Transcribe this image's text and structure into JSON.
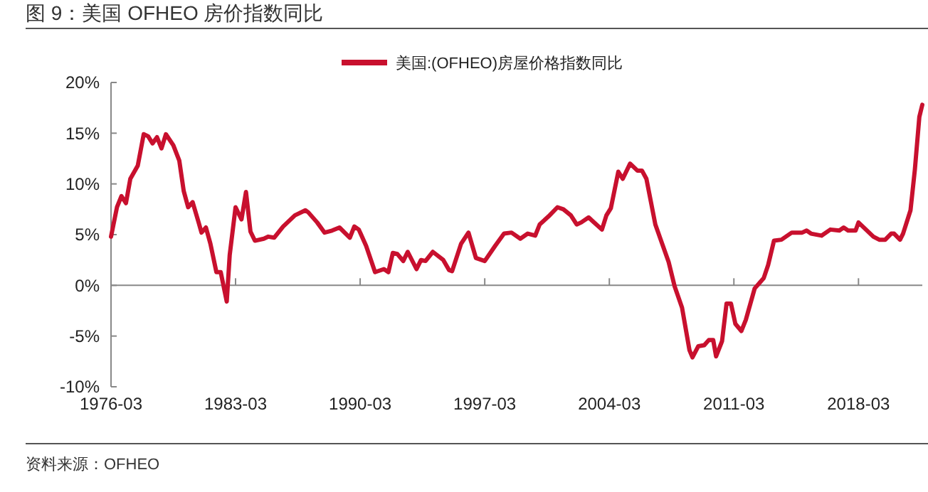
{
  "chart_data": {
    "type": "line",
    "title": "图 9：美国 OFHEO 房价指数同比",
    "legend": "top",
    "marker": "none",
    "line_style": "solid",
    "annotations": [
      "资料来源：OFHEO"
    ],
    "xlim": [
      "1976-03",
      "2021-10"
    ],
    "xticks": [
      "1976-03",
      "1983-03",
      "1990-03",
      "1997-03",
      "2004-03",
      "2011-03",
      "2018-03"
    ],
    "ylim": [
      -10,
      20
    ],
    "yticks": [
      {
        "value": -10,
        "label": "-10%"
      },
      {
        "value": -5,
        "label": "-5%"
      },
      {
        "value": 0,
        "label": "0%"
      },
      {
        "value": 5,
        "label": "5%"
      },
      {
        "value": 10,
        "label": "10%"
      },
      {
        "value": 15,
        "label": "15%"
      },
      {
        "value": 20,
        "label": "20%"
      }
    ],
    "x": [
      "1976-03",
      "1976-07",
      "1976-10",
      "1977-01",
      "1977-04",
      "1977-09",
      "1978-01",
      "1978-04",
      "1978-07",
      "1978-10",
      "1979-01",
      "1979-04",
      "1979-09",
      "1980-01",
      "1980-04",
      "1980-07",
      "1980-10",
      "1981-02",
      "1981-04",
      "1981-07",
      "1981-10",
      "1982-02",
      "1982-05",
      "1982-09",
      "1982-11",
      "1983-03",
      "1983-07",
      "1983-10",
      "1984-01",
      "1984-04",
      "1984-10",
      "1985-01",
      "1985-05",
      "1985-11",
      "1986-07",
      "1987-02",
      "1987-04",
      "1987-10",
      "1988-03",
      "1988-08",
      "1989-01",
      "1989-08",
      "1989-11",
      "1990-02",
      "1990-07",
      "1991-01",
      "1991-07",
      "1991-10",
      "1992-01",
      "1992-04",
      "1992-08",
      "1992-11",
      "1993-05",
      "1993-08",
      "1993-11",
      "1994-04",
      "1994-11",
      "1995-03",
      "1995-05",
      "1995-11",
      "1996-04",
      "1996-09",
      "1997-03",
      "1997-10",
      "1998-04",
      "1998-09",
      "1999-03",
      "1999-08",
      "2000-01",
      "2000-04",
      "2000-10",
      "2001-04",
      "2001-08",
      "2002-01",
      "2002-05",
      "2002-08",
      "2003-01",
      "2003-04",
      "2003-10",
      "2004-01",
      "2004-04",
      "2004-09",
      "2004-12",
      "2005-05",
      "2005-10",
      "2006-01",
      "2006-04",
      "2006-10",
      "2007-07",
      "2007-11",
      "2008-04",
      "2008-09",
      "2008-11",
      "2009-03",
      "2009-07",
      "2009-10",
      "2010-01",
      "2010-03",
      "2010-07",
      "2010-10",
      "2011-01",
      "2011-04",
      "2011-08",
      "2011-11",
      "2012-05",
      "2012-08",
      "2012-11",
      "2013-02",
      "2013-06",
      "2013-11",
      "2014-06",
      "2015-01",
      "2015-04",
      "2015-07",
      "2016-02",
      "2016-08",
      "2017-02",
      "2017-05",
      "2017-08",
      "2018-01",
      "2018-03",
      "2018-08",
      "2019-01",
      "2019-05",
      "2019-09",
      "2020-01",
      "2020-03",
      "2020-07",
      "2020-09",
      "2021-02",
      "2021-05",
      "2021-08",
      "2021-10"
    ],
    "series": [
      {
        "name": "美国:(OFHEO)房屋价格指数同比",
        "color": "#c8102e",
        "values": [
          4.8,
          7.7,
          8.8,
          8.1,
          10.5,
          11.8,
          14.9,
          14.7,
          14.0,
          14.6,
          13.5,
          14.9,
          13.8,
          12.3,
          9.3,
          7.7,
          8.2,
          6.2,
          5.2,
          5.7,
          4.1,
          1.3,
          1.3,
          -1.6,
          3.0,
          7.7,
          6.5,
          9.2,
          5.3,
          4.4,
          4.6,
          4.8,
          4.7,
          5.8,
          6.9,
          7.4,
          7.2,
          6.2,
          5.2,
          5.4,
          5.7,
          4.7,
          5.8,
          5.5,
          3.9,
          1.3,
          1.6,
          1.3,
          3.2,
          3.1,
          2.4,
          3.3,
          1.6,
          2.5,
          2.4,
          3.3,
          2.5,
          1.5,
          1.4,
          4.1,
          5.2,
          2.7,
          2.4,
          3.9,
          5.1,
          5.2,
          4.6,
          5.1,
          4.9,
          6.0,
          6.8,
          7.7,
          7.5,
          6.9,
          6.0,
          6.2,
          6.7,
          6.3,
          5.5,
          6.9,
          7.6,
          11.2,
          10.5,
          12.0,
          11.3,
          11.3,
          10.5,
          6.0,
          2.3,
          -0.1,
          -2.2,
          -6.4,
          -7.1,
          -6.0,
          -5.9,
          -5.4,
          -5.4,
          -7.0,
          -5.5,
          -1.8,
          -1.8,
          -3.8,
          -4.5,
          -3.4,
          -0.3,
          0.2,
          0.7,
          2.0,
          4.4,
          4.5,
          5.2,
          5.2,
          5.4,
          5.1,
          4.9,
          5.5,
          5.4,
          5.7,
          5.4,
          5.4,
          6.2,
          5.5,
          4.8,
          4.5,
          4.5,
          5.1,
          5.1,
          4.5,
          5.1,
          7.4,
          11.4,
          16.6,
          17.8
        ]
      }
    ]
  }
}
